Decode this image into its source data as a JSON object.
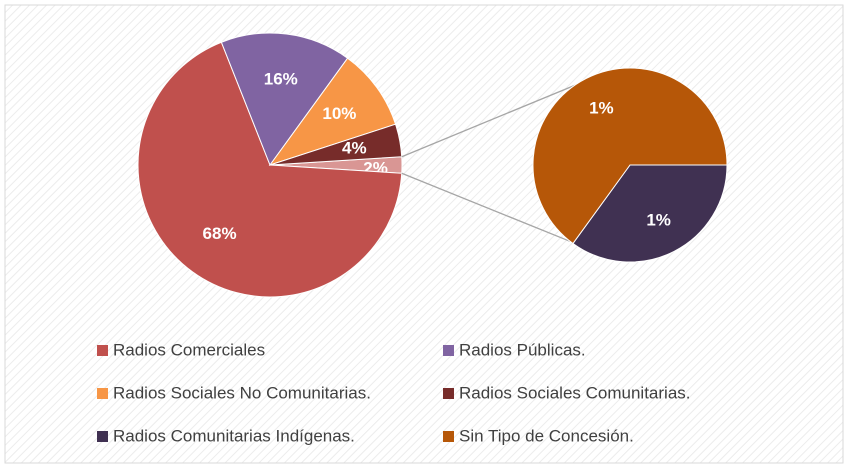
{
  "chart_data": {
    "type": "pie-of-pie",
    "categories": [
      "Radios Comerciales",
      "Radios Públicas.",
      "Radios Sociales No Comunitarias.",
      "Radios Sociales Comunitarias.",
      "Radios Comunitarias Indígenas.",
      "Sin Tipo de Concesión."
    ],
    "values": [
      68,
      16,
      10,
      4,
      0.7,
      1.3
    ],
    "value_labels": [
      "68%",
      "16%",
      "10%",
      "4%",
      "1%",
      "1%"
    ],
    "colors": [
      "#c0504d",
      "#8064a2",
      "#f79646",
      "#772c2a",
      "#403152",
      "#b65708"
    ],
    "other_value": 2,
    "other_label": "2%",
    "other_color": "#d99694",
    "split_count": 2,
    "legend_position": "bottom"
  }
}
